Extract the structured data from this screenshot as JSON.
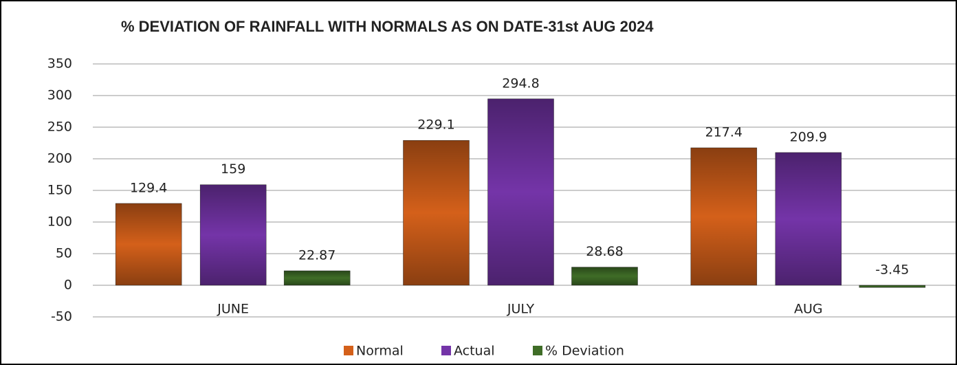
{
  "chart_data": {
    "type": "bar",
    "title": "% DEVIATION OF RAINFALL WITH NORMALS AS ON DATE-31st AUG 2024",
    "categories": [
      "JUNE",
      "JULY",
      "AUG"
    ],
    "series": [
      {
        "name": "Normal",
        "color": "#d4601a",
        "values": [
          129.4,
          229.1,
          217.4
        ]
      },
      {
        "name": "Actual",
        "color": "#7434a8",
        "values": [
          159,
          294.8,
          209.9
        ]
      },
      {
        "name": "% Deviation",
        "color": "#3f6d27",
        "values": [
          22.87,
          28.68,
          -3.45
        ]
      }
    ],
    "ylim": [
      -50,
      350
    ],
    "yticks": [
      -50,
      0,
      50,
      100,
      150,
      200,
      250,
      300,
      350
    ],
    "grid": true,
    "legend": "bottom"
  }
}
